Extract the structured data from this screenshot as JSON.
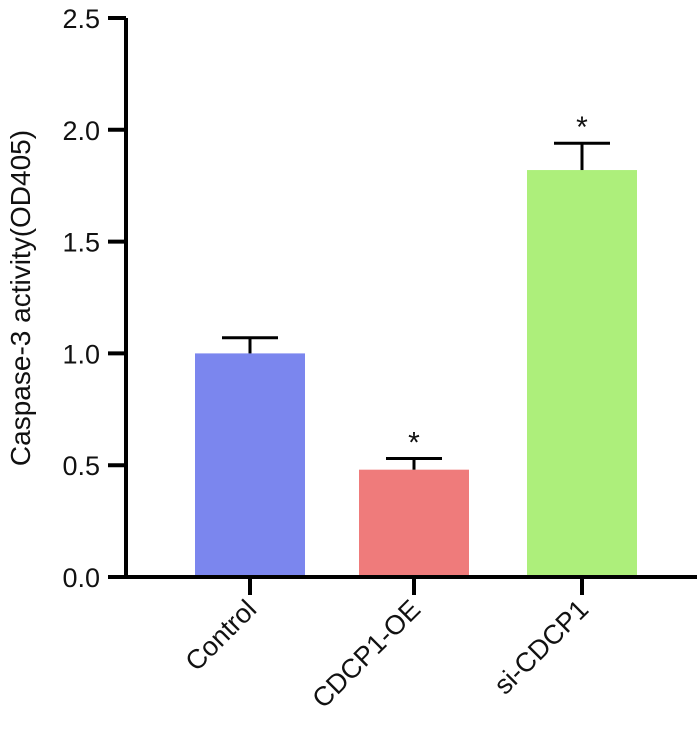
{
  "chart_data": {
    "type": "bar",
    "categories": [
      "Control",
      "CDCP1-OE",
      "si-CDCP1"
    ],
    "values": [
      1.0,
      0.48,
      1.82
    ],
    "errors": [
      0.07,
      0.05,
      0.12
    ],
    "significance": [
      "",
      "*",
      "*"
    ],
    "colors": [
      "#7b86ee",
      "#ef7b7b",
      "#adef7b"
    ],
    "title": "",
    "xlabel": "",
    "ylabel": "Caspase-3 activity(OD405)",
    "ylim": [
      0,
      2.5
    ],
    "yticks": [
      "0.0",
      "0.5",
      "1.0",
      "1.5",
      "2.0",
      "2.5"
    ],
    "ytick_values": [
      0,
      0.5,
      1.0,
      1.5,
      2.0,
      2.5
    ],
    "grid": false,
    "legend": "none"
  }
}
